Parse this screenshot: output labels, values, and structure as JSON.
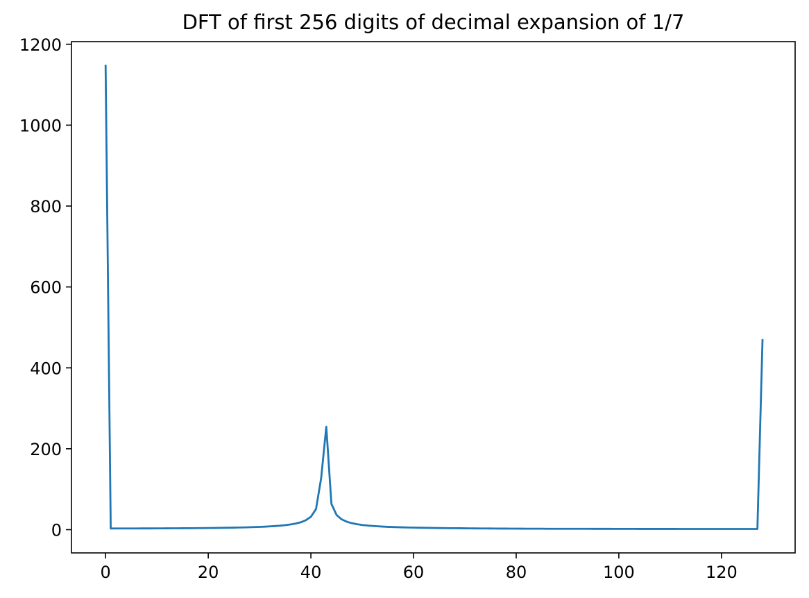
{
  "chart_data": {
    "type": "line",
    "title": "DFT of first 256 digits of decimal expansion of 1/7",
    "xlabel": "",
    "ylabel": "",
    "legend": null,
    "grid": false,
    "line_color": "#1f77b4",
    "x_ticks": [
      0,
      20,
      40,
      60,
      80,
      100,
      120
    ],
    "y_ticks": [
      0,
      200,
      400,
      600,
      800,
      1000,
      1200
    ],
    "xlim": [
      -6.65,
      134.35
    ],
    "ylim": [
      -57.45,
      1206.45
    ],
    "x_start": 0,
    "x_step": 1,
    "values": [
      1149,
      2.9,
      3.0,
      3.0,
      3.0,
      3.0,
      3.0,
      3.1,
      3.1,
      3.1,
      3.2,
      3.2,
      3.3,
      3.4,
      3.4,
      3.5,
      3.6,
      3.7,
      3.8,
      3.9,
      4.1,
      4.2,
      4.4,
      4.6,
      4.8,
      5.0,
      5.3,
      5.6,
      6.0,
      6.4,
      6.9,
      7.4,
      8.1,
      8.9,
      9.9,
      11.1,
      12.8,
      15.0,
      18.2,
      23.2,
      31.8,
      50.9,
      127.3,
      254.4,
      63.7,
      36.4,
      25.5,
      19.6,
      16.0,
      13.5,
      11.6,
      10.3,
      9.2,
      8.3,
      7.6,
      7.0,
      6.5,
      6.1,
      5.7,
      5.4,
      5.1,
      4.8,
      4.6,
      4.4,
      4.2,
      4.0,
      3.9,
      3.7,
      3.6,
      3.5,
      3.3,
      3.2,
      3.1,
      3.0,
      3.0,
      2.9,
      2.8,
      2.7,
      2.7,
      2.6,
      2.6,
      2.5,
      2.4,
      2.4,
      2.3,
      2.3,
      2.2,
      2.2,
      2.2,
      2.2,
      2.2,
      2.1,
      2.1,
      2.1,
      2.1,
      2.0,
      2.0,
      2.0,
      2.0,
      1.9,
      1.9,
      1.9,
      1.9,
      1.9,
      1.8,
      1.8,
      1.8,
      1.8,
      1.8,
      1.8,
      1.8,
      1.8,
      1.7,
      1.7,
      1.7,
      1.7,
      1.7,
      1.7,
      1.7,
      1.7,
      1.7,
      1.7,
      1.7,
      1.7,
      1.7,
      1.7,
      1.7,
      1.7,
      471
    ]
  }
}
